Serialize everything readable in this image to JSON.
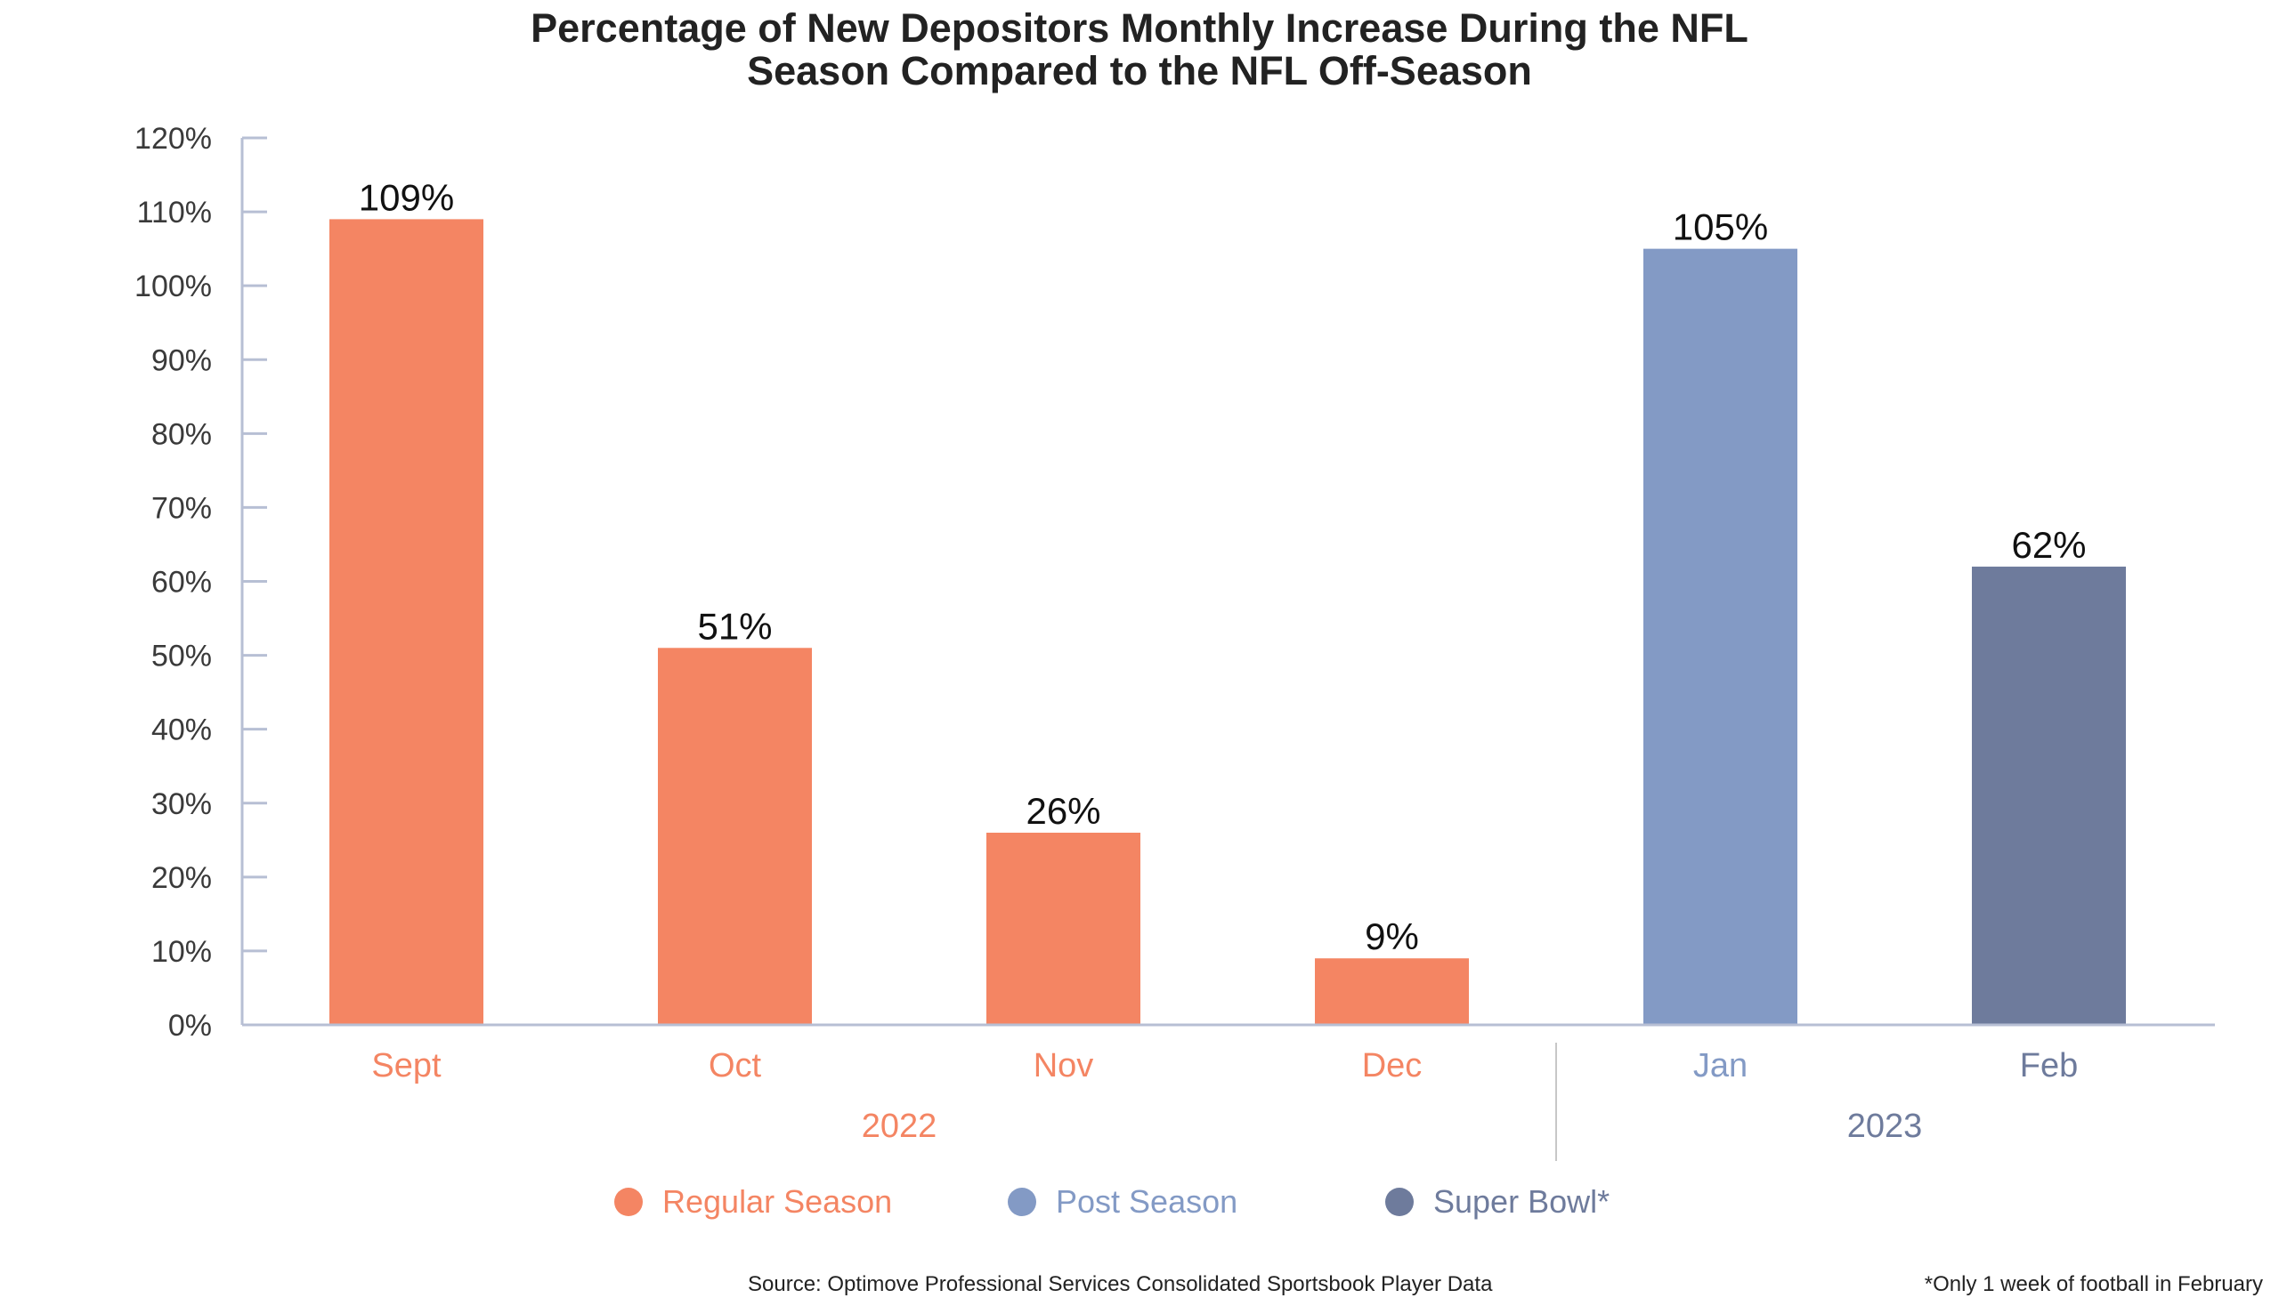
{
  "chart_data": {
    "type": "bar",
    "title_lines": [
      "Percentage of New Depositors Monthly Increase During the NFL",
      "Season Compared to the NFL Off-Season"
    ],
    "categories": [
      "Sept",
      "Oct",
      "Nov",
      "Dec",
      "Jan",
      "Feb"
    ],
    "values": [
      109,
      51,
      26,
      9,
      105,
      62
    ],
    "data_labels": [
      "109%",
      "51%",
      "26%",
      "9%",
      "105%",
      "62%"
    ],
    "bar_groups": [
      "regular",
      "regular",
      "regular",
      "regular",
      "post",
      "superbowl"
    ],
    "year_groups": [
      {
        "label": "2022",
        "start": 0,
        "end": 3,
        "color": "#f48563"
      },
      {
        "label": "2023",
        "start": 4,
        "end": 5,
        "color": "#6e7b9c"
      }
    ],
    "ylim": [
      0,
      120
    ],
    "ytick_step": 10,
    "ytick_labels": [
      "0%",
      "10%",
      "20%",
      "30%",
      "40%",
      "50%",
      "60%",
      "70%",
      "80%",
      "90%",
      "100%",
      "110%",
      "120%"
    ],
    "xlabel": "",
    "ylabel": "",
    "grid": false,
    "legend_position": "bottom",
    "legend": [
      {
        "key": "regular",
        "label": "Regular Season",
        "color": "#f48563"
      },
      {
        "key": "post",
        "label": "Post Season",
        "color": "#839ac5"
      },
      {
        "key": "superbowl",
        "label": "Super Bowl*",
        "color": "#6e7b9c"
      }
    ]
  },
  "footer": {
    "source": "Source: Optimove Professional Services Consolidated Sportsbook Player Data",
    "note": "*Only 1 week of football in February"
  },
  "colors": {
    "axis": "#b7bfd4",
    "text": "#222222",
    "tick_label": "#3a3a3a"
  }
}
